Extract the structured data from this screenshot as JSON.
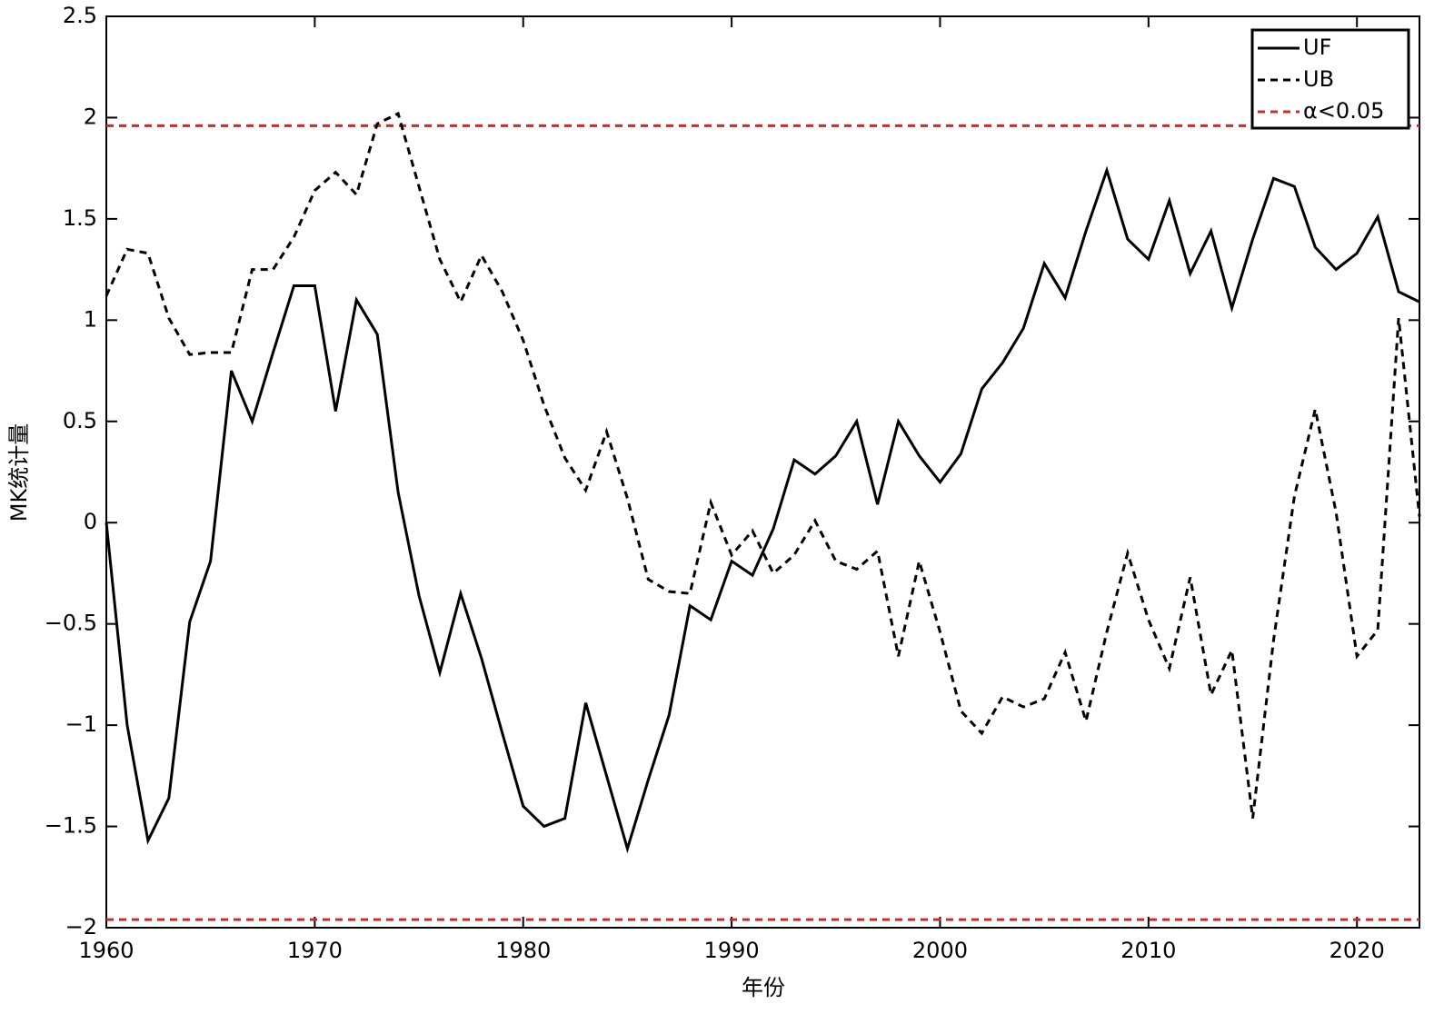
{
  "chart_data": {
    "type": "line",
    "xlabel": "年份",
    "ylabel": "MK统计量",
    "x": [
      1960,
      1961,
      1962,
      1963,
      1964,
      1965,
      1966,
      1967,
      1968,
      1969,
      1970,
      1971,
      1972,
      1973,
      1974,
      1975,
      1976,
      1977,
      1978,
      1979,
      1980,
      1981,
      1982,
      1983,
      1984,
      1985,
      1986,
      1987,
      1988,
      1989,
      1990,
      1991,
      1992,
      1993,
      1994,
      1995,
      1996,
      1997,
      1998,
      1999,
      2000,
      2001,
      2002,
      2003,
      2004,
      2005,
      2006,
      2007,
      2008,
      2009,
      2010,
      2011,
      2012,
      2013,
      2014,
      2015,
      2016,
      2017,
      2018,
      2019,
      2020,
      2021,
      2022,
      2023
    ],
    "series": [
      {
        "name": "UF",
        "color": "#000000",
        "style": "solid",
        "values": [
          0,
          -1.0,
          -1.57,
          -1.36,
          -0.49,
          -0.19,
          0.75,
          0.5,
          0.84,
          1.17,
          1.17,
          0.55,
          1.1,
          0.93,
          0.15,
          -0.36,
          -0.74,
          -0.35,
          -0.67,
          -1.04,
          -1.4,
          -1.5,
          -1.46,
          -0.89,
          -1.25,
          -1.61,
          -1.27,
          -0.95,
          -0.41,
          -0.48,
          -0.19,
          -0.26,
          -0.03,
          0.31,
          0.24,
          0.33,
          0.5,
          0.09,
          0.5,
          0.33,
          0.2,
          0.34,
          0.66,
          0.79,
          0.96,
          1.28,
          1.11,
          1.44,
          1.74,
          1.4,
          1.3,
          1.59,
          1.23,
          1.44,
          1.06,
          1.4,
          1.7,
          1.66,
          1.36,
          1.25,
          1.33,
          1.51,
          1.14,
          1.09
        ]
      },
      {
        "name": "UB",
        "color": "#000000",
        "style": "dashed",
        "values": [
          1.12,
          1.35,
          1.33,
          1.01,
          0.83,
          0.84,
          0.84,
          1.25,
          1.25,
          1.41,
          1.64,
          1.73,
          1.62,
          1.97,
          2.02,
          1.66,
          1.3,
          1.09,
          1.32,
          1.14,
          0.9,
          0.58,
          0.32,
          0.16,
          0.45,
          0.12,
          -0.28,
          -0.34,
          -0.35,
          0.1,
          -0.16,
          -0.04,
          -0.25,
          -0.16,
          0.01,
          -0.19,
          -0.23,
          -0.14,
          -0.66,
          -0.19,
          -0.54,
          -0.93,
          -1.04,
          -0.86,
          -0.91,
          -0.87,
          -0.64,
          -0.98,
          -0.54,
          -0.15,
          -0.48,
          -0.72,
          -0.27,
          -0.85,
          -0.63,
          -1.46,
          -0.58,
          0.13,
          0.56,
          0.05,
          -0.66,
          -0.53,
          1.01,
          0.03
        ]
      }
    ],
    "hlines": {
      "name": "α<0.05",
      "color": "#d62728",
      "style": "dashed",
      "values": [
        1.96,
        -1.96
      ]
    },
    "xlim": [
      1960,
      2023
    ],
    "xticks": [
      1960,
      1970,
      1980,
      1990,
      2000,
      2010,
      2020
    ],
    "ylim": [
      -2,
      2.5
    ],
    "yticks": [
      {
        "value": -2,
        "label": "−2"
      },
      {
        "value": -1.5,
        "label": "−1.5"
      },
      {
        "value": -1,
        "label": "−1"
      },
      {
        "value": -0.5,
        "label": "−0.5"
      },
      0,
      0.5,
      1,
      1.5,
      2,
      2.5
    ],
    "grid": false,
    "legend": "upper right"
  }
}
